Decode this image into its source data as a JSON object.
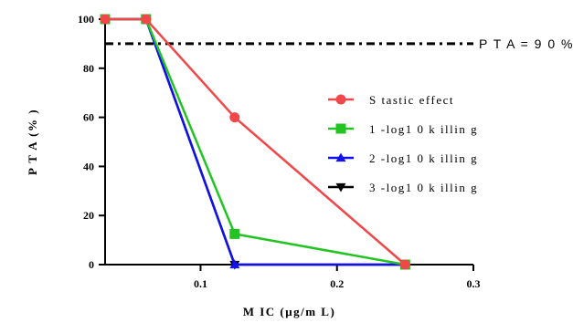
{
  "chart_data": {
    "type": "line",
    "title": "",
    "xlabel": "M IC (μg/m L)",
    "ylabel": "P T A (% )",
    "xlim": [
      0.03,
      0.3
    ],
    "ylim": [
      0,
      100
    ],
    "x_ticks": [
      0.1,
      0.2,
      0.3
    ],
    "x_tick_labels": [
      "0.1",
      "0.2",
      "0.3"
    ],
    "y_ticks": [
      0,
      20,
      40,
      60,
      80,
      100
    ],
    "y_tick_labels": [
      "0",
      "20",
      "40",
      "60",
      "80",
      "100"
    ],
    "grid": false,
    "legend_position": "right",
    "reference_line": {
      "y": 90,
      "label": "P T A = 9 0 %",
      "style": "dash-dot",
      "color": "#000000"
    },
    "series": [
      {
        "name": "S tastic effect",
        "color": "#f2474a",
        "marker": "circle",
        "x": [
          0.03,
          0.06,
          0.125,
          0.25
        ],
        "y": [
          100,
          100,
          60,
          0
        ]
      },
      {
        "name": "1 -log1 0 k illin g",
        "color": "#22c322",
        "marker": "square",
        "x": [
          0.03,
          0.06,
          0.125,
          0.25
        ],
        "y": [
          100,
          100,
          12.5,
          0
        ]
      },
      {
        "name": "2 -log1 0 k illin g",
        "color": "#1111ee",
        "marker": "triangle-up",
        "x": [
          0.03,
          0.06,
          0.125,
          0.25
        ],
        "y": [
          100,
          100,
          0,
          0
        ]
      },
      {
        "name": "3 -log1 0 k illin g",
        "color": "#000000",
        "marker": "triangle-down",
        "x": [
          0.03,
          0.06,
          0.125,
          0.25
        ],
        "y": [
          100,
          100,
          0,
          0
        ]
      }
    ]
  }
}
